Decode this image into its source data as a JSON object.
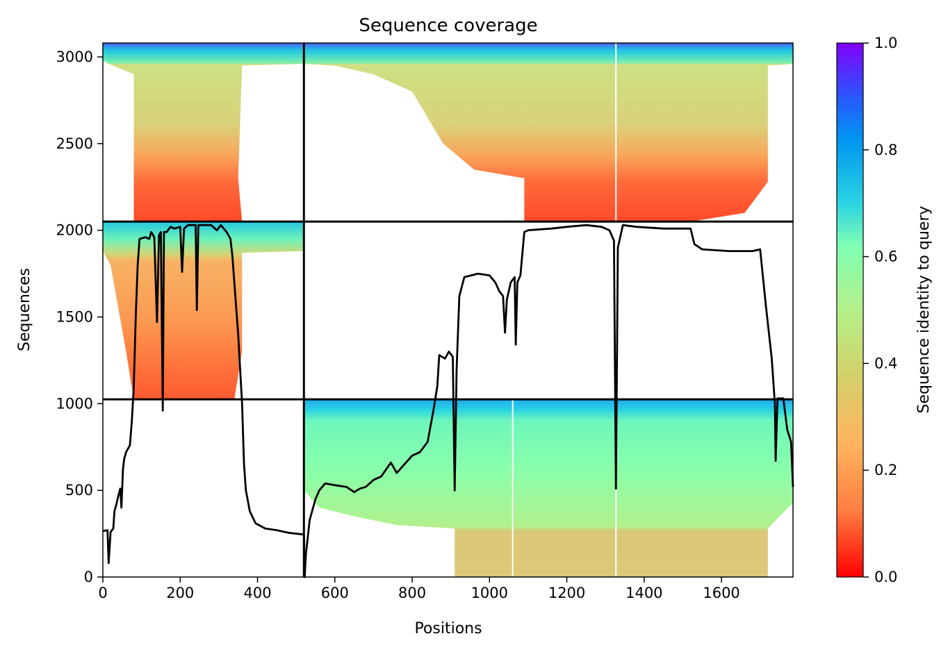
{
  "chart_data": {
    "type": "heatmap",
    "title": "Sequence coverage",
    "xlabel": "Positions",
    "ylabel": "Sequences",
    "xlim": [
      0,
      1785
    ],
    "ylim": [
      0,
      3080
    ],
    "xticks": [
      0,
      200,
      400,
      600,
      800,
      1000,
      1200,
      1400,
      1600
    ],
    "yticks": [
      0,
      500,
      1000,
      1500,
      2000,
      2500,
      3000
    ],
    "colorbar": {
      "label": "Sequence identity to query",
      "colormap": "rainbow_r",
      "range": [
        0,
        1
      ],
      "ticks": [
        "0.0",
        "0.2",
        "0.4",
        "0.6",
        "0.8",
        "1.0"
      ],
      "stops": [
        "#ff0000",
        "#ff7f40",
        "#d4d068",
        "#b4f08a",
        "#80ffb4",
        "#2ad4e1",
        "#0095f0",
        "#2a56fb",
        "#8000ff"
      ]
    },
    "chain_boundaries": {
      "positions": [
        520
      ],
      "sequences": [
        1025,
        2050
      ]
    },
    "blocks": [
      {
        "x": [
          0,
          520
        ],
        "y": [
          2050,
          3080
        ],
        "identity": "top 0.85 to bottom 0.10",
        "coverage": "mostly 80-360"
      },
      {
        "x": [
          520,
          1785
        ],
        "y": [
          2050,
          3080
        ],
        "identity": "top 0.85 to bottom 0.10",
        "coverage": "staircase 620-1785"
      },
      {
        "x": [
          0,
          520
        ],
        "y": [
          1025,
          2050
        ],
        "identity": "top 0.70 to bottom 0.15",
        "coverage": "mostly 80-360"
      },
      {
        "x": [
          520,
          1785
        ],
        "y": [
          0,
          1025
        ],
        "identity": "top 0.75 to bottom 0.30",
        "coverage": "520-1785"
      }
    ],
    "series": [
      {
        "type": "line",
        "color": "#000000",
        "points": [
          [
            0,
            265
          ],
          [
            12,
            270
          ],
          [
            15,
            80
          ],
          [
            20,
            260
          ],
          [
            27,
            280
          ],
          [
            30,
            380
          ],
          [
            35,
            420
          ],
          [
            40,
            470
          ],
          [
            45,
            510
          ],
          [
            48,
            400
          ],
          [
            52,
            620
          ],
          [
            55,
            680
          ],
          [
            60,
            720
          ],
          [
            65,
            740
          ],
          [
            70,
            760
          ],
          [
            75,
            900
          ],
          [
            80,
            1100
          ],
          [
            85,
            1500
          ],
          [
            90,
            1800
          ],
          [
            95,
            1950
          ],
          [
            110,
            1960
          ],
          [
            120,
            1950
          ],
          [
            125,
            1990
          ],
          [
            133,
            1960
          ],
          [
            140,
            1470
          ],
          [
            145,
            1970
          ],
          [
            150,
            1990
          ],
          [
            155,
            960
          ],
          [
            158,
            1990
          ],
          [
            165,
            1990
          ],
          [
            175,
            2020
          ],
          [
            185,
            2010
          ],
          [
            200,
            2020
          ],
          [
            205,
            1760
          ],
          [
            210,
            2010
          ],
          [
            220,
            2030
          ],
          [
            240,
            2030
          ],
          [
            243,
            1540
          ],
          [
            247,
            2030
          ],
          [
            260,
            2030
          ],
          [
            280,
            2030
          ],
          [
            295,
            2000
          ],
          [
            305,
            2030
          ],
          [
            320,
            1990
          ],
          [
            330,
            1950
          ],
          [
            335,
            1850
          ],
          [
            345,
            1550
          ],
          [
            350,
            1400
          ],
          [
            360,
            1000
          ],
          [
            365,
            650
          ],
          [
            370,
            500
          ],
          [
            380,
            380
          ],
          [
            395,
            310
          ],
          [
            420,
            280
          ],
          [
            450,
            270
          ],
          [
            480,
            255
          ],
          [
            520,
            245
          ],
          [
            522,
            0
          ],
          [
            525,
            130
          ],
          [
            535,
            330
          ],
          [
            550,
            450
          ],
          [
            560,
            500
          ],
          [
            575,
            540
          ],
          [
            600,
            530
          ],
          [
            630,
            520
          ],
          [
            650,
            490
          ],
          [
            665,
            510
          ],
          [
            680,
            520
          ],
          [
            700,
            560
          ],
          [
            720,
            580
          ],
          [
            745,
            660
          ],
          [
            760,
            600
          ],
          [
            780,
            650
          ],
          [
            800,
            700
          ],
          [
            820,
            720
          ],
          [
            840,
            780
          ],
          [
            855,
            960
          ],
          [
            865,
            1100
          ],
          [
            870,
            1280
          ],
          [
            885,
            1260
          ],
          [
            895,
            1300
          ],
          [
            905,
            1270
          ],
          [
            910,
            500
          ],
          [
            915,
            1200
          ],
          [
            922,
            1620
          ],
          [
            935,
            1730
          ],
          [
            970,
            1750
          ],
          [
            1000,
            1740
          ],
          [
            1015,
            1700
          ],
          [
            1025,
            1650
          ],
          [
            1035,
            1620
          ],
          [
            1040,
            1410
          ],
          [
            1045,
            1600
          ],
          [
            1055,
            1700
          ],
          [
            1065,
            1730
          ],
          [
            1068,
            1340
          ],
          [
            1072,
            1700
          ],
          [
            1080,
            1740
          ],
          [
            1090,
            1990
          ],
          [
            1100,
            2000
          ],
          [
            1160,
            2010
          ],
          [
            1200,
            2020
          ],
          [
            1250,
            2030
          ],
          [
            1290,
            2020
          ],
          [
            1310,
            2000
          ],
          [
            1322,
            1940
          ],
          [
            1327,
            510
          ],
          [
            1332,
            1900
          ],
          [
            1345,
            2030
          ],
          [
            1380,
            2020
          ],
          [
            1450,
            2010
          ],
          [
            1520,
            2010
          ],
          [
            1530,
            1920
          ],
          [
            1550,
            1890
          ],
          [
            1620,
            1880
          ],
          [
            1680,
            1880
          ],
          [
            1700,
            1890
          ],
          [
            1715,
            1560
          ],
          [
            1730,
            1260
          ],
          [
            1738,
            1000
          ],
          [
            1740,
            670
          ],
          [
            1745,
            1030
          ],
          [
            1760,
            1030
          ],
          [
            1770,
            850
          ],
          [
            1780,
            780
          ],
          [
            1785,
            520
          ]
        ]
      }
    ]
  }
}
